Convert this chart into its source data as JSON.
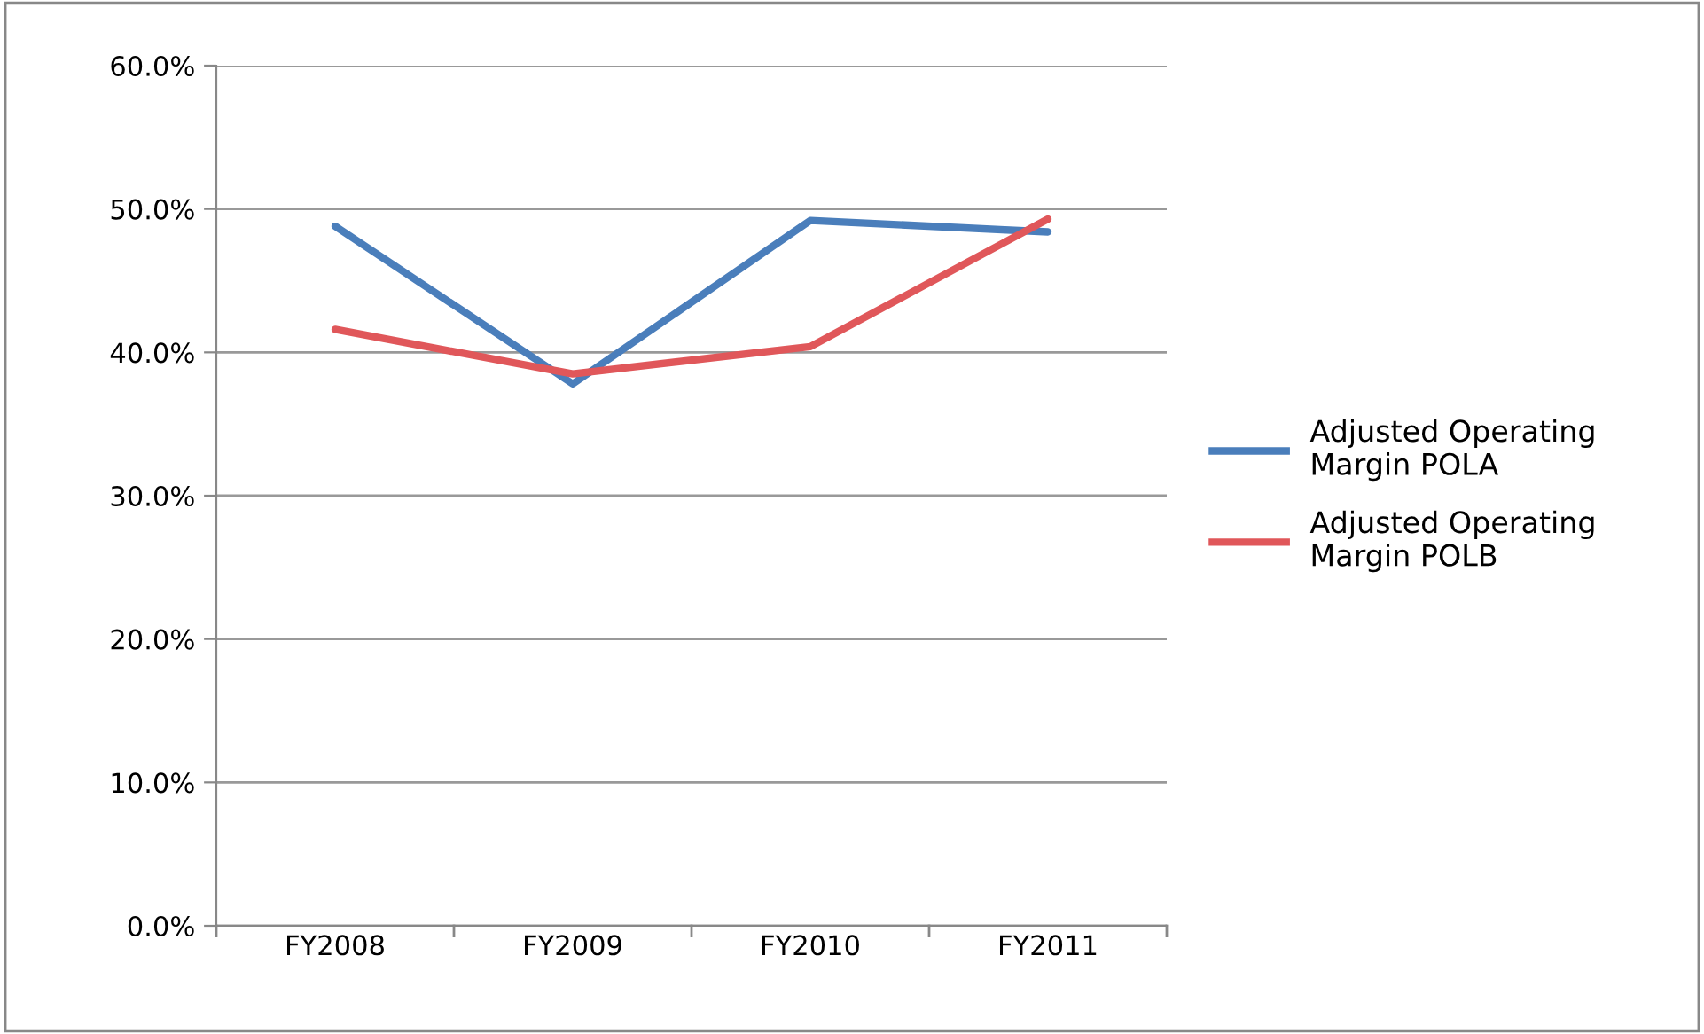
{
  "chart_data": {
    "type": "line",
    "categories": [
      "FY2008",
      "FY2009",
      "FY2010",
      "FY2011"
    ],
    "series": [
      {
        "name": "Adjusted Operating Margin POLA",
        "color": "#4a7ebb",
        "values": [
          48.8,
          37.8,
          49.2,
          48.4
        ]
      },
      {
        "name": "Adjusted Operating Margin POLB",
        "color": "#e0575a",
        "values": [
          41.6,
          38.5,
          40.4,
          49.3
        ]
      }
    ],
    "ylim": [
      0,
      60
    ],
    "yticks": [
      {
        "value": 0,
        "label": "0.0%"
      },
      {
        "value": 10,
        "label": "10.0%"
      },
      {
        "value": 20,
        "label": "20.0%"
      },
      {
        "value": 30,
        "label": "30.0%"
      },
      {
        "value": 40,
        "label": "40.0%"
      },
      {
        "value": 50,
        "label": "50.0%"
      },
      {
        "value": 60,
        "label": "60.0%"
      }
    ],
    "grid": "y",
    "legend": "right",
    "marker": "none",
    "line_style": "solid"
  }
}
